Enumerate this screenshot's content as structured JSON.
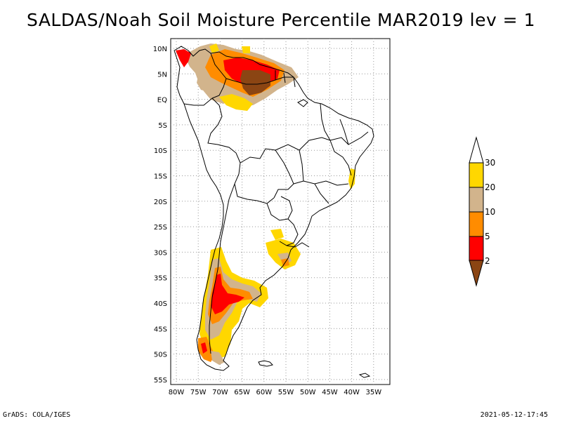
{
  "title": "SALDAS/Noah Soil Moisture Percentile MAR2019 lev = 1",
  "footer": {
    "left": "GrADS: COLA/IGES",
    "right": "2021-05-12-17:45"
  },
  "map": {
    "lat_labels": [
      "10N",
      "5N",
      "EQ",
      "5S",
      "10S",
      "15S",
      "20S",
      "25S",
      "30S",
      "35S",
      "40S",
      "45S",
      "50S",
      "55S"
    ],
    "lon_labels": [
      "80W",
      "75W",
      "70W",
      "65W",
      "60W",
      "55W",
      "50W",
      "45W",
      "40W",
      "35W"
    ],
    "grid": true,
    "colors": {
      "c2": "#8b4513",
      "c5": "#ff0000",
      "c10": "#ff8c00",
      "c20": "#d2b48c",
      "c30": "#ffd700",
      "c_high": "#ffffff"
    }
  },
  "legend": {
    "labels": [
      "2",
      "5",
      "10",
      "20",
      "30"
    ],
    "colors": [
      "#8b4513",
      "#ff0000",
      "#ff8c00",
      "#d2b48c",
      "#ffd700"
    ]
  }
}
